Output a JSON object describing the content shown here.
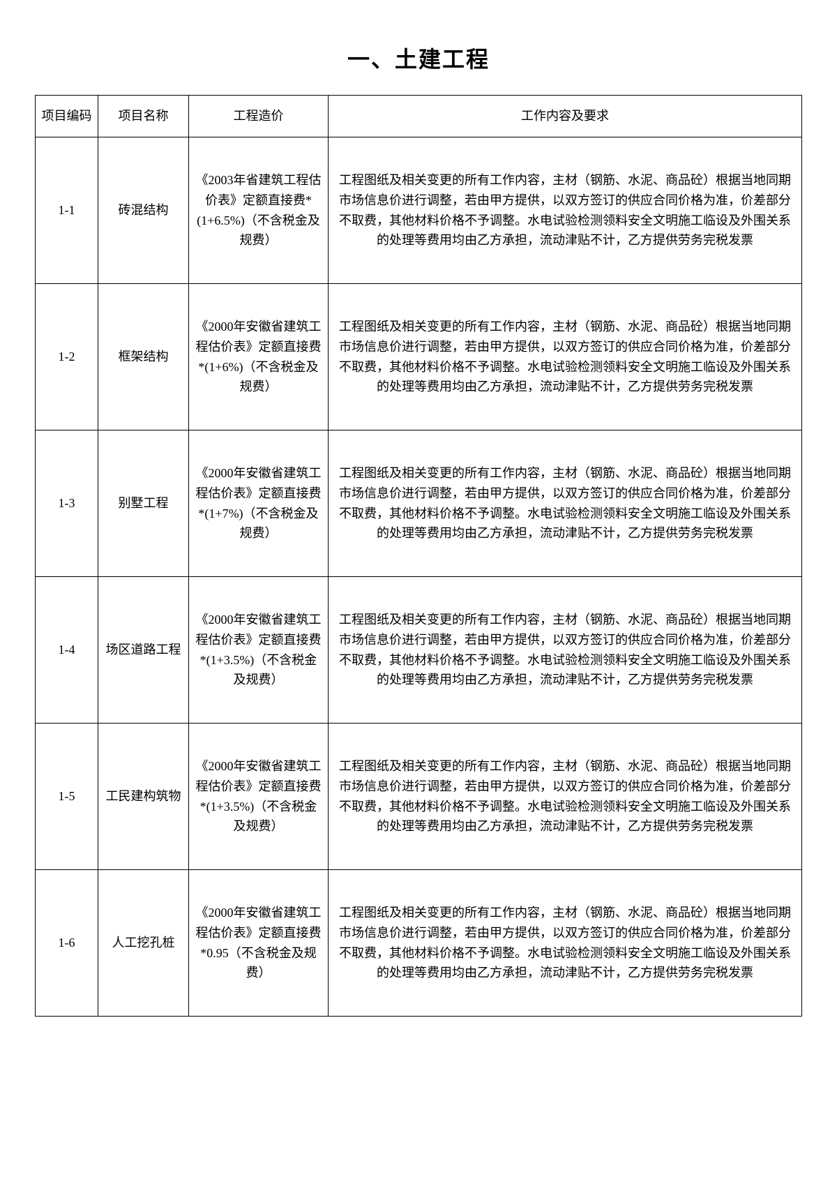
{
  "title": "一、土建工程",
  "table": {
    "columns": [
      "项目编码",
      "项目名称",
      "工程造价",
      "工作内容及要求"
    ],
    "rows": [
      {
        "code": "1-1",
        "name": "砖混结构",
        "cost": "《2003年省建筑工程估价表》定额直接费*(1+6.5%)（不含税金及规费）",
        "desc": "工程图纸及相关变更的所有工作内容，主材（钢筋、水泥、商品砼）根据当地同期市场信息价进行调整，若由甲方提供，以双方签订的供应合同价格为准，价差部分不取费，其他材料价格不予调整。水电试验检测领料安全文明施工临设及外围关系的处理等费用均由乙方承担，流动津贴不计，乙方提供劳务完税发票"
      },
      {
        "code": "1-2",
        "name": "框架结构",
        "cost": "《2000年安徽省建筑工程估价表》定额直接费*(1+6%)（不含税金及规费）",
        "desc": "工程图纸及相关变更的所有工作内容，主材（钢筋、水泥、商品砼）根据当地同期市场信息价进行调整，若由甲方提供，以双方签订的供应合同价格为准，价差部分不取费，其他材料价格不予调整。水电试验检测领料安全文明施工临设及外围关系的处理等费用均由乙方承担，流动津贴不计，乙方提供劳务完税发票"
      },
      {
        "code": "1-3",
        "name": "别墅工程",
        "cost": "《2000年安徽省建筑工程估价表》定额直接费*(1+7%)（不含税金及规费）",
        "desc": "工程图纸及相关变更的所有工作内容，主材（钢筋、水泥、商品砼）根据当地同期市场信息价进行调整，若由甲方提供，以双方签订的供应合同价格为准，价差部分不取费，其他材料价格不予调整。水电试验检测领料安全文明施工临设及外围关系的处理等费用均由乙方承担，流动津贴不计，乙方提供劳务完税发票"
      },
      {
        "code": "1-4",
        "name": "场区道路工程",
        "cost": "《2000年安徽省建筑工程估价表》定额直接费*(1+3.5%)（不含税金及规费）",
        "desc": "工程图纸及相关变更的所有工作内容，主材（钢筋、水泥、商品砼）根据当地同期市场信息价进行调整，若由甲方提供，以双方签订的供应合同价格为准，价差部分不取费，其他材料价格不予调整。水电试验检测领料安全文明施工临设及外围关系的处理等费用均由乙方承担，流动津贴不计，乙方提供劳务完税发票"
      },
      {
        "code": "1-5",
        "name": "工民建构筑物",
        "cost": "《2000年安徽省建筑工程估价表》定额直接费*(1+3.5%)（不含税金及规费）",
        "desc": "工程图纸及相关变更的所有工作内容，主材（钢筋、水泥、商品砼）根据当地同期市场信息价进行调整，若由甲方提供，以双方签订的供应合同价格为准，价差部分不取费，其他材料价格不予调整。水电试验检测领料安全文明施工临设及外围关系的处理等费用均由乙方承担，流动津贴不计，乙方提供劳务完税发票"
      },
      {
        "code": "1-6",
        "name": "人工挖孔桩",
        "cost": "《2000年安徽省建筑工程估价表》定额直接费*0.95（不含税金及规费）",
        "desc": "工程图纸及相关变更的所有工作内容，主材（钢筋、水泥、商品砼）根据当地同期市场信息价进行调整，若由甲方提供，以双方签订的供应合同价格为准，价差部分不取费，其他材料价格不予调整。水电试验检测领料安全文明施工临设及外围关系的处理等费用均由乙方承担，流动津贴不计，乙方提供劳务完税发票"
      }
    ]
  }
}
